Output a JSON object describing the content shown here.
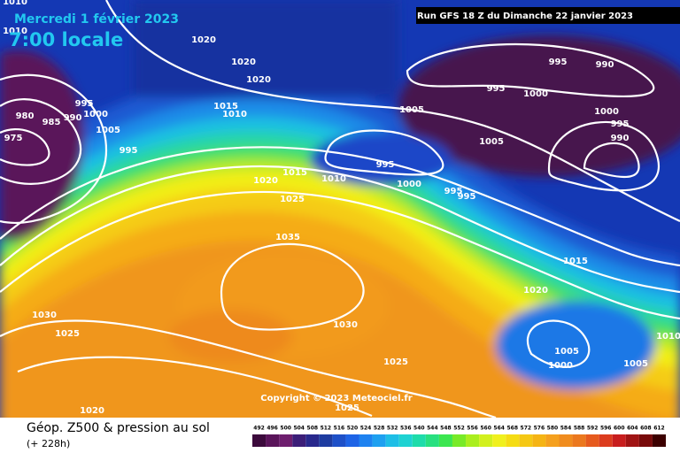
{
  "header": {
    "date": "Mercredi 1 février 2023",
    "time": "7:00 locale",
    "run": "Run GFS 18 Z du Dimanche 22 janvier 2023"
  },
  "isobar_labels": [
    "1010",
    "1010",
    "1020",
    "1020",
    "1020",
    "1015",
    "1010",
    "995",
    "1000",
    "990",
    "985",
    "980",
    "975",
    "1005",
    "995",
    "1005",
    "995",
    "990",
    "995",
    "1000",
    "1000",
    "995",
    "990",
    "1005",
    "995",
    "1000",
    "995",
    "995",
    "1015",
    "1010",
    "1020",
    "1025",
    "1035",
    "1015",
    "1020",
    "1030",
    "1025",
    "1030",
    "1025",
    "1005",
    "1000",
    "1005",
    "1010",
    "1020",
    "1025"
  ],
  "copyright": "Copyright © 2023 Meteociel.fr",
  "footer": {
    "title": "Géop. Z500 & pression au sol",
    "lead": "(+ 228h)"
  },
  "legend": {
    "values": [
      492,
      496,
      500,
      504,
      508,
      512,
      516,
      520,
      524,
      528,
      532,
      536,
      540,
      544,
      548,
      552,
      556,
      560,
      564,
      568,
      572,
      576,
      580,
      584,
      588,
      592,
      596,
      600,
      604,
      608,
      612
    ],
    "colors": [
      "#3c0a3c",
      "#5a145a",
      "#6e1e6e",
      "#3c1e78",
      "#28288c",
      "#1e3ca0",
      "#1e50c8",
      "#1e64e6",
      "#1e82f0",
      "#1ea0f0",
      "#1ebee6",
      "#1ed2d2",
      "#1edcaa",
      "#28e080",
      "#3ce650",
      "#78ea28",
      "#aaee1e",
      "#d2f01e",
      "#f0f01e",
      "#f5dc14",
      "#f5c814",
      "#f5b414",
      "#f5a01e",
      "#f08c1e",
      "#eb781e",
      "#e65a1e",
      "#dc3c1e",
      "#c81e1e",
      "#a01414",
      "#780a0a",
      "#3c0000"
    ]
  }
}
